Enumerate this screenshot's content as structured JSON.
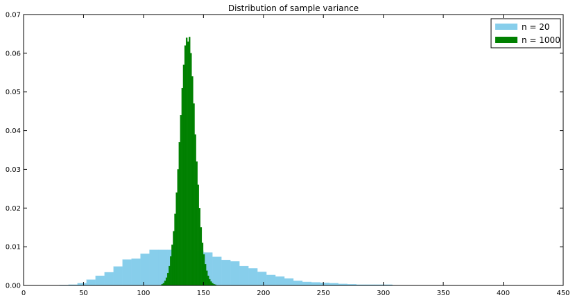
{
  "chart_data": {
    "type": "bar",
    "title": "Distribution of sample variance",
    "xlabel": "",
    "ylabel": "",
    "xlim": [
      0,
      450
    ],
    "ylim": [
      0,
      0.07
    ],
    "x_ticks": [
      0,
      50,
      100,
      150,
      200,
      250,
      300,
      350,
      400,
      450
    ],
    "y_ticks": [
      0.0,
      0.01,
      0.02,
      0.03,
      0.04,
      0.05,
      0.06,
      0.07
    ],
    "y_tick_labels": [
      "0.00",
      "0.01",
      "0.02",
      "0.03",
      "0.04",
      "0.05",
      "0.06",
      "0.07"
    ],
    "grid": false,
    "legend_position": "top-right",
    "series": [
      {
        "name": "n = 20",
        "color": "#87ceeb",
        "bin_width": 7.5,
        "bins": [
          {
            "x": 30,
            "v": 0.0001
          },
          {
            "x": 37.5,
            "v": 0.0002
          },
          {
            "x": 45,
            "v": 0.0006
          },
          {
            "x": 52.5,
            "v": 0.0015
          },
          {
            "x": 60,
            "v": 0.0025
          },
          {
            "x": 67.5,
            "v": 0.0034
          },
          {
            "x": 75,
            "v": 0.0049
          },
          {
            "x": 82.5,
            "v": 0.0067
          },
          {
            "x": 90,
            "v": 0.0069
          },
          {
            "x": 97.5,
            "v": 0.0082
          },
          {
            "x": 105,
            "v": 0.0092
          },
          {
            "x": 112.5,
            "v": 0.0092
          },
          {
            "x": 120,
            "v": 0.0092
          },
          {
            "x": 127.5,
            "v": 0.0092
          },
          {
            "x": 135,
            "v": 0.0091
          },
          {
            "x": 142.5,
            "v": 0.009
          },
          {
            "x": 150,
            "v": 0.0085
          },
          {
            "x": 157.5,
            "v": 0.0074
          },
          {
            "x": 165,
            "v": 0.0066
          },
          {
            "x": 172.5,
            "v": 0.0062
          },
          {
            "x": 180,
            "v": 0.005
          },
          {
            "x": 187.5,
            "v": 0.0044
          },
          {
            "x": 195,
            "v": 0.0035
          },
          {
            "x": 202.5,
            "v": 0.0027
          },
          {
            "x": 210,
            "v": 0.0023
          },
          {
            "x": 217.5,
            "v": 0.0018
          },
          {
            "x": 225,
            "v": 0.0012
          },
          {
            "x": 232.5,
            "v": 0.0009
          },
          {
            "x": 240,
            "v": 0.0008
          },
          {
            "x": 247.5,
            "v": 0.0007
          },
          {
            "x": 255,
            "v": 0.0006
          },
          {
            "x": 262.5,
            "v": 0.0004
          },
          {
            "x": 270,
            "v": 0.0003
          },
          {
            "x": 277.5,
            "v": 0.0002
          },
          {
            "x": 285,
            "v": 0.0002
          },
          {
            "x": 292.5,
            "v": 0.0002
          },
          {
            "x": 300,
            "v": 0.0002
          }
        ]
      },
      {
        "name": "n = 1000",
        "color": "#008000",
        "bin_width": 1.2,
        "bins": [
          {
            "x": 115.0,
            "v": 0.0003
          },
          {
            "x": 116.2,
            "v": 0.0006
          },
          {
            "x": 117.4,
            "v": 0.0012
          },
          {
            "x": 118.6,
            "v": 0.002
          },
          {
            "x": 119.8,
            "v": 0.0032
          },
          {
            "x": 121.0,
            "v": 0.005
          },
          {
            "x": 122.2,
            "v": 0.0075
          },
          {
            "x": 123.4,
            "v": 0.0105
          },
          {
            "x": 124.6,
            "v": 0.014
          },
          {
            "x": 125.8,
            "v": 0.0185
          },
          {
            "x": 127.0,
            "v": 0.024
          },
          {
            "x": 128.2,
            "v": 0.03
          },
          {
            "x": 129.4,
            "v": 0.037
          },
          {
            "x": 130.6,
            "v": 0.044
          },
          {
            "x": 131.8,
            "v": 0.051
          },
          {
            "x": 133.0,
            "v": 0.057
          },
          {
            "x": 134.2,
            "v": 0.062
          },
          {
            "x": 135.4,
            "v": 0.064
          },
          {
            "x": 136.6,
            "v": 0.063
          },
          {
            "x": 137.8,
            "v": 0.0642
          },
          {
            "x": 139.0,
            "v": 0.06
          },
          {
            "x": 140.2,
            "v": 0.054
          },
          {
            "x": 141.4,
            "v": 0.047
          },
          {
            "x": 142.6,
            "v": 0.039
          },
          {
            "x": 143.8,
            "v": 0.032
          },
          {
            "x": 145.0,
            "v": 0.026
          },
          {
            "x": 146.2,
            "v": 0.02
          },
          {
            "x": 147.4,
            "v": 0.015
          },
          {
            "x": 148.6,
            "v": 0.011
          },
          {
            "x": 149.8,
            "v": 0.008
          },
          {
            "x": 151.0,
            "v": 0.0055
          },
          {
            "x": 152.2,
            "v": 0.0038
          },
          {
            "x": 153.4,
            "v": 0.0025
          },
          {
            "x": 154.6,
            "v": 0.0016
          },
          {
            "x": 155.8,
            "v": 0.001
          },
          {
            "x": 157.0,
            "v": 0.0006
          },
          {
            "x": 158.2,
            "v": 0.0003
          },
          {
            "x": 159.4,
            "v": 0.0002
          }
        ]
      }
    ]
  }
}
